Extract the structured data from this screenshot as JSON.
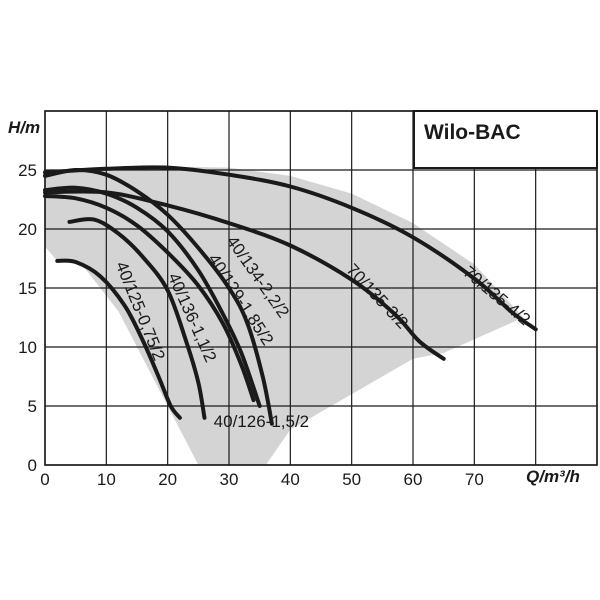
{
  "chart_data": {
    "type": "line",
    "title": "Wilo-BAC",
    "xlabel": "Q/m³/h",
    "ylabel": "H/m",
    "xlim": [
      0,
      90
    ],
    "ylim": [
      0,
      30
    ],
    "xticks": [
      0,
      10,
      20,
      30,
      40,
      50,
      60,
      70
    ],
    "yticks": [
      0,
      5,
      10,
      15,
      20,
      25
    ],
    "grid": true,
    "colors": {
      "curve": "#1a1a1a",
      "envelope": "#d4d4d4",
      "grid": "#1a1a1a"
    },
    "envelope": [
      [
        0,
        24.8
      ],
      [
        10,
        25.2
      ],
      [
        20,
        25.3
      ],
      [
        30,
        25.2
      ],
      [
        40,
        24.5
      ],
      [
        50,
        23
      ],
      [
        60,
        20.5
      ],
      [
        70,
        17
      ],
      [
        78,
        12.5
      ],
      [
        65,
        9.5
      ],
      [
        60,
        9
      ],
      [
        40,
        3
      ],
      [
        36,
        0
      ],
      [
        25,
        0
      ],
      [
        23,
        2
      ],
      [
        18,
        7
      ],
      [
        12,
        13
      ],
      [
        6,
        17
      ],
      [
        2,
        17.3
      ],
      [
        0,
        18.5
      ]
    ],
    "series": [
      {
        "name": "40/125-0,75/2",
        "label_at": [
          11.5,
          17
        ],
        "label_angle": 68,
        "points": [
          [
            2,
            17.3
          ],
          [
            5,
            17.2
          ],
          [
            9,
            16
          ],
          [
            13,
            13.5
          ],
          [
            16,
            10.5
          ],
          [
            18.5,
            7.5
          ],
          [
            20.5,
            5
          ],
          [
            22,
            4
          ]
        ]
      },
      {
        "name": "40/136-1,1/2",
        "label_at": [
          20,
          16
        ],
        "label_angle": 66,
        "points": [
          [
            4,
            20.6
          ],
          [
            8,
            20.8
          ],
          [
            12,
            19.6
          ],
          [
            16,
            17.6
          ],
          [
            20,
            14.8
          ],
          [
            23,
            10.5
          ],
          [
            25,
            7
          ],
          [
            26,
            4
          ]
        ]
      },
      {
        "name": "40/126-1,5/2",
        "label_at": [
          27.5,
          3.2
        ],
        "label_angle": 0,
        "points": [
          [
            0,
            22.8
          ],
          [
            5,
            22.6
          ],
          [
            10,
            21.8
          ],
          [
            15,
            20.3
          ],
          [
            20,
            18
          ],
          [
            25,
            15.2
          ],
          [
            29,
            12
          ],
          [
            32,
            8.5
          ],
          [
            34,
            5.5
          ]
        ]
      },
      {
        "name": "40/129-1,85/2",
        "label_at": [
          26.5,
          17.5
        ],
        "label_angle": 57,
        "points": [
          [
            0,
            23.3
          ],
          [
            5,
            23.5
          ],
          [
            10,
            23
          ],
          [
            15,
            21.8
          ],
          [
            20,
            19.8
          ],
          [
            25,
            16.5
          ],
          [
            29,
            12.8
          ],
          [
            32,
            9.5
          ],
          [
            35,
            5
          ]
        ]
      },
      {
        "name": "40/134-2,2/2",
        "label_at": [
          29.5,
          19
        ],
        "label_angle": 55,
        "points": [
          [
            0,
            24.5
          ],
          [
            5,
            25
          ],
          [
            10,
            24.6
          ],
          [
            15,
            23.2
          ],
          [
            20,
            21.2
          ],
          [
            25,
            18.4
          ],
          [
            30,
            15
          ],
          [
            33,
            12
          ],
          [
            35.5,
            7.5
          ],
          [
            37,
            3.5
          ]
        ]
      },
      {
        "name": "70/135-3/2",
        "label_at": [
          49,
          16.5
        ],
        "label_angle": 47,
        "points": [
          [
            0,
            23.1
          ],
          [
            10,
            23.1
          ],
          [
            20,
            22
          ],
          [
            30,
            20.5
          ],
          [
            40,
            18.6
          ],
          [
            50,
            15.7
          ],
          [
            57,
            12.8
          ],
          [
            61,
            10.5
          ],
          [
            65,
            9
          ]
        ]
      },
      {
        "name": "70/135-4/2",
        "label_at": [
          68,
          16.2
        ],
        "label_angle": 40,
        "points": [
          [
            0,
            24.8
          ],
          [
            10,
            25.1
          ],
          [
            20,
            25.2
          ],
          [
            30,
            24.6
          ],
          [
            40,
            23.6
          ],
          [
            50,
            21.8
          ],
          [
            60,
            19.3
          ],
          [
            70,
            15.8
          ],
          [
            76,
            13
          ],
          [
            80,
            11.5
          ]
        ]
      }
    ]
  }
}
